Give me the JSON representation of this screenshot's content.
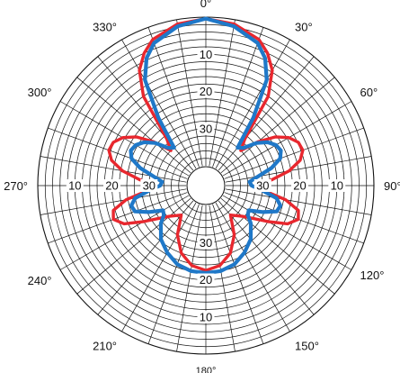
{
  "chart_data": {
    "type": "polar",
    "title": "",
    "angle_direction": "clockwise",
    "zero_angle_position": "top",
    "radial_axis": {
      "inner_value": 40,
      "outer_value": 0,
      "reversed": true
    },
    "angle_tick_labels": [
      "0°",
      "30°",
      "60°",
      "90°",
      "120°",
      "150°",
      "180°",
      "210°",
      "240°",
      "270°",
      "300°",
      "330°"
    ],
    "radial_tick_labels": [
      {
        "text": "10",
        "angle": 0
      },
      {
        "text": "20",
        "angle": 0
      },
      {
        "text": "30",
        "angle": 0
      },
      {
        "text": "30",
        "angle": 180
      },
      {
        "text": "20",
        "angle": 180
      },
      {
        "text": "10",
        "angle": 180
      },
      {
        "text": "30",
        "angle": 90
      },
      {
        "text": "20",
        "angle": 90
      },
      {
        "text": "10",
        "angle": 90
      },
      {
        "text": "30",
        "angle": 270
      },
      {
        "text": "20",
        "angle": 270
      },
      {
        "text": "10",
        "angle": 270
      }
    ],
    "grid": true,
    "series": [
      {
        "color": "#e8272e",
        "points": [
          [
            0,
            0.4
          ],
          [
            10,
            1.2
          ],
          [
            20,
            3.5
          ],
          [
            25,
            6
          ],
          [
            30,
            9.5
          ],
          [
            35,
            16
          ],
          [
            40,
            29
          ],
          [
            45,
            32
          ],
          [
            50,
            27
          ],
          [
            55,
            22.5
          ],
          [
            60,
            19.5
          ],
          [
            65,
            17.8
          ],
          [
            70,
            17.5
          ],
          [
            75,
            19
          ],
          [
            80,
            22.5
          ],
          [
            85,
            27.5
          ],
          [
            90,
            31.5
          ],
          [
            95,
            29.5
          ],
          [
            100,
            23.5
          ],
          [
            105,
            19.5
          ],
          [
            110,
            18.8
          ],
          [
            115,
            21
          ],
          [
            120,
            26
          ],
          [
            125,
            30
          ],
          [
            130,
            32.5
          ],
          [
            140,
            35
          ],
          [
            150,
            30
          ],
          [
            160,
            26
          ],
          [
            170,
            23.5
          ],
          [
            180,
            22.5
          ],
          [
            190,
            23.5
          ],
          [
            200,
            26
          ],
          [
            210,
            30
          ],
          [
            220,
            35
          ],
          [
            230,
            32.5
          ],
          [
            235,
            30
          ],
          [
            240,
            26
          ],
          [
            245,
            21
          ],
          [
            250,
            18.8
          ],
          [
            255,
            19.5
          ],
          [
            260,
            23.5
          ],
          [
            265,
            29.5
          ],
          [
            270,
            31.5
          ],
          [
            275,
            27.5
          ],
          [
            280,
            22.5
          ],
          [
            285,
            19
          ],
          [
            290,
            17.5
          ],
          [
            295,
            17.8
          ],
          [
            300,
            19.5
          ],
          [
            305,
            22.5
          ],
          [
            310,
            27
          ],
          [
            315,
            32
          ],
          [
            320,
            29
          ],
          [
            325,
            16
          ],
          [
            330,
            9.5
          ],
          [
            335,
            6
          ],
          [
            340,
            3.5
          ],
          [
            350,
            1.2
          ],
          [
            360,
            0.4
          ]
        ]
      },
      {
        "color": "#1f78c8",
        "points": [
          [
            0,
            0.4
          ],
          [
            10,
            1.8
          ],
          [
            20,
            4.5
          ],
          [
            25,
            7.5
          ],
          [
            30,
            12.5
          ],
          [
            35,
            23
          ],
          [
            40,
            32
          ],
          [
            45,
            31
          ],
          [
            50,
            27.5
          ],
          [
            55,
            25
          ],
          [
            60,
            23.5
          ],
          [
            65,
            23
          ],
          [
            70,
            24
          ],
          [
            75,
            27
          ],
          [
            80,
            31
          ],
          [
            85,
            33.5
          ],
          [
            90,
            33
          ],
          [
            95,
            30
          ],
          [
            100,
            26
          ],
          [
            105,
            24.5
          ],
          [
            110,
            25
          ],
          [
            115,
            28.5
          ],
          [
            120,
            32
          ],
          [
            125,
            31.5
          ],
          [
            130,
            29.5
          ],
          [
            140,
            26.5
          ],
          [
            150,
            24.5
          ],
          [
            160,
            22.8
          ],
          [
            170,
            22
          ],
          [
            180,
            21.8
          ],
          [
            190,
            22
          ],
          [
            200,
            22.8
          ],
          [
            210,
            24.5
          ],
          [
            220,
            26.5
          ],
          [
            230,
            29.5
          ],
          [
            235,
            31.5
          ],
          [
            240,
            32
          ],
          [
            245,
            28.5
          ],
          [
            250,
            25
          ],
          [
            255,
            24.5
          ],
          [
            260,
            26
          ],
          [
            265,
            30
          ],
          [
            270,
            33
          ],
          [
            275,
            33.5
          ],
          [
            280,
            31
          ],
          [
            285,
            27
          ],
          [
            290,
            24
          ],
          [
            295,
            23
          ],
          [
            300,
            23.5
          ],
          [
            305,
            25
          ],
          [
            310,
            27.5
          ],
          [
            315,
            31
          ],
          [
            320,
            32
          ],
          [
            325,
            23
          ],
          [
            330,
            12.5
          ],
          [
            335,
            7.5
          ],
          [
            340,
            4.5
          ],
          [
            350,
            1.8
          ],
          [
            360,
            0.4
          ]
        ]
      }
    ]
  }
}
